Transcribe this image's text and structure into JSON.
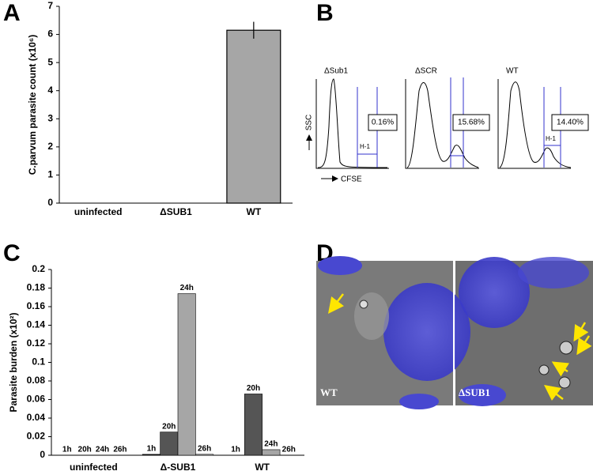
{
  "panel_labels": [
    "A",
    "B",
    "C",
    "D"
  ],
  "chart_data": [
    {
      "type": "bar",
      "y_label": "C.parvum parasite count (x10⁶)",
      "categories": [
        "uninfected",
        "ΔSUB1",
        "WT"
      ],
      "values": [
        0,
        0,
        6.15
      ],
      "errors": [
        0,
        0,
        0.3
      ],
      "color": "#a6a6a6",
      "ylim": [
        0,
        7
      ],
      "yticks": [
        0,
        1,
        2,
        3,
        4,
        5,
        6,
        7
      ],
      "grid": false
    },
    {
      "type": "bar",
      "y_label": "Parasite burden (x10²)",
      "categories": [
        "uninfected",
        "Δ-SUB1",
        "WT"
      ],
      "series": [
        {
          "name": "1h",
          "color": "#1a1a1a",
          "values": [
            0,
            0.001,
            0
          ]
        },
        {
          "name": "20h",
          "color": "#555555",
          "values": [
            0,
            0.025,
            0.066
          ]
        },
        {
          "name": "24h",
          "color": "#a6a6a6",
          "values": [
            0,
            0.174,
            0.006
          ]
        },
        {
          "name": "26h",
          "color": "#c8c8c8",
          "values": [
            0,
            0.001,
            0
          ]
        }
      ],
      "ylim": [
        0,
        0.2
      ],
      "yticks": [
        0,
        0.02,
        0.04,
        0.06,
        0.08,
        0.1,
        0.12,
        0.14,
        0.16,
        0.18,
        0.2
      ],
      "grid": false
    }
  ],
  "flow": {
    "y_label": "SSC",
    "x_label": "CFSE",
    "plots": [
      {
        "title": "ΔSub1",
        "gate": "H-1",
        "percent": "0.16%"
      },
      {
        "title": "ΔSCR",
        "percent": "15.68%"
      },
      {
        "title": "WT",
        "gate": "H-1",
        "percent": "14.40%"
      }
    ]
  },
  "micrographs": {
    "labels": [
      "WT",
      "ΔSUB1"
    ]
  }
}
